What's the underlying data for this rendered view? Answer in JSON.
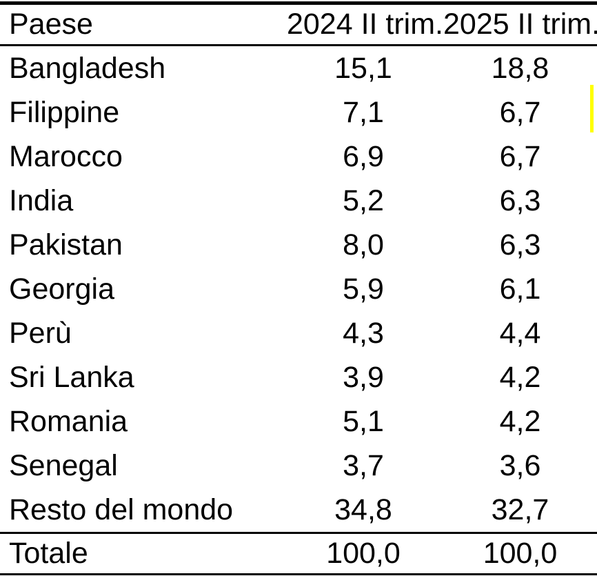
{
  "table": {
    "columns": [
      "Paese",
      "2024 II trim.",
      "2025 II trim."
    ],
    "rows": [
      {
        "paese": "Bangladesh",
        "q2_2024": "15,1",
        "q2_2025": "18,8"
      },
      {
        "paese": "Filippine",
        "q2_2024": "7,1",
        "q2_2025": "6,7"
      },
      {
        "paese": "Marocco",
        "q2_2024": "6,9",
        "q2_2025": "6,7"
      },
      {
        "paese": "India",
        "q2_2024": "5,2",
        "q2_2025": "6,3"
      },
      {
        "paese": "Pakistan",
        "q2_2024": "8,0",
        "q2_2025": "6,3"
      },
      {
        "paese": "Georgia",
        "q2_2024": "5,9",
        "q2_2025": "6,1"
      },
      {
        "paese": "Perù",
        "q2_2024": "4,3",
        "q2_2025": "4,4"
      },
      {
        "paese": "Sri Lanka",
        "q2_2024": "3,9",
        "q2_2025": "4,2"
      },
      {
        "paese": "Romania",
        "q2_2024": "5,1",
        "q2_2025": "4,2"
      },
      {
        "paese": "Senegal",
        "q2_2024": "3,7",
        "q2_2025": "3,6"
      },
      {
        "paese": "Resto del mondo",
        "q2_2024": "34,8",
        "q2_2025": "32,7"
      }
    ],
    "total_row": {
      "paese": "Totale",
      "q2_2024": "100,0",
      "q2_2025": "100,0"
    }
  },
  "chart_data": {
    "type": "table",
    "title": "",
    "categories": [
      "Bangladesh",
      "Filippine",
      "Marocco",
      "India",
      "Pakistan",
      "Georgia",
      "Perù",
      "Sri Lanka",
      "Romania",
      "Senegal",
      "Resto del mondo",
      "Totale"
    ],
    "series": [
      {
        "name": "2024 II trim.",
        "values": [
          15.1,
          7.1,
          6.9,
          5.2,
          8.0,
          5.9,
          4.3,
          3.9,
          5.1,
          3.7,
          34.8,
          100.0
        ]
      },
      {
        "name": "2025 II trim.",
        "values": [
          18.8,
          6.7,
          6.7,
          6.3,
          6.3,
          6.1,
          4.4,
          4.2,
          4.2,
          3.6,
          32.7,
          100.0
        ]
      }
    ],
    "layout_hints": {
      "first_column_header": "Paese",
      "decimal_separator": ",",
      "rules": [
        "thick top rule",
        "rule under header row",
        "rule above total row",
        "bottom rule"
      ]
    }
  },
  "annotations": {
    "highlight_color": "#FFFF00",
    "highlighted_row": "Filippine"
  },
  "colors": {
    "background": "#FFFFFF",
    "text": "#000000",
    "border": "#000000"
  }
}
